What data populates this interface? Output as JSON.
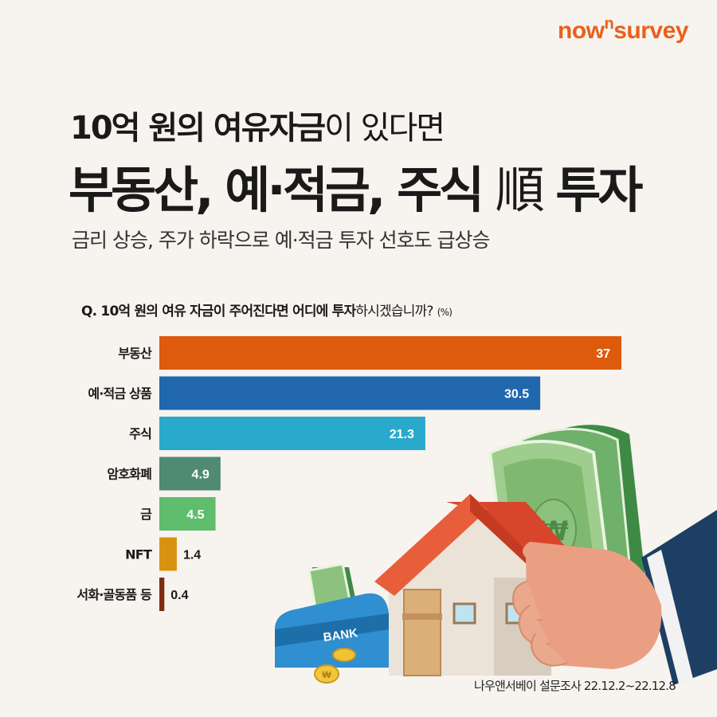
{
  "brand": {
    "logo_prefix": "now",
    "logo_sup": "n",
    "logo_suffix": "survey"
  },
  "headline": {
    "line1_bold": "10억 원의 여유자금",
    "line1_light": "이 있다면",
    "line2_bold": "부동산, 예·적금, 주식",
    "line2_light": "順",
    "line2_end": "투자"
  },
  "subtitle": "금리 상승, 주가 하락으로 예·적금 투자 선호도 급상승",
  "question": {
    "bold": "Q. 10억 원의 여유 자금이 주어진다면 어디에 투자",
    "light": "하시겠습니까?",
    "unit": "(%)"
  },
  "illustration": {
    "bank_label": "BANK"
  },
  "source": "나우앤서베이 설문조사 22.12.2~22.12.8",
  "chart_data": {
    "type": "bar",
    "orientation": "horizontal",
    "categories": [
      "부동산",
      "예·적금 상품",
      "주식",
      "암호화폐",
      "금",
      "NFT",
      "서화·골동품 등"
    ],
    "values": [
      37,
      30.5,
      21.3,
      4.9,
      4.5,
      1.4,
      0.4
    ],
    "labels": [
      "37",
      "30.5",
      "21.3",
      "4.9",
      "4.5",
      "1.4",
      "0.4"
    ],
    "colors": [
      "#de5a0c",
      "#2167ad",
      "#29a9cc",
      "#4f8a72",
      "#5fbd6d",
      "#d89212",
      "#7e2c12"
    ],
    "xlim": [
      0,
      37
    ],
    "label_inside": [
      true,
      true,
      true,
      true,
      true,
      false,
      false
    ],
    "grid": false,
    "legend": "none"
  }
}
